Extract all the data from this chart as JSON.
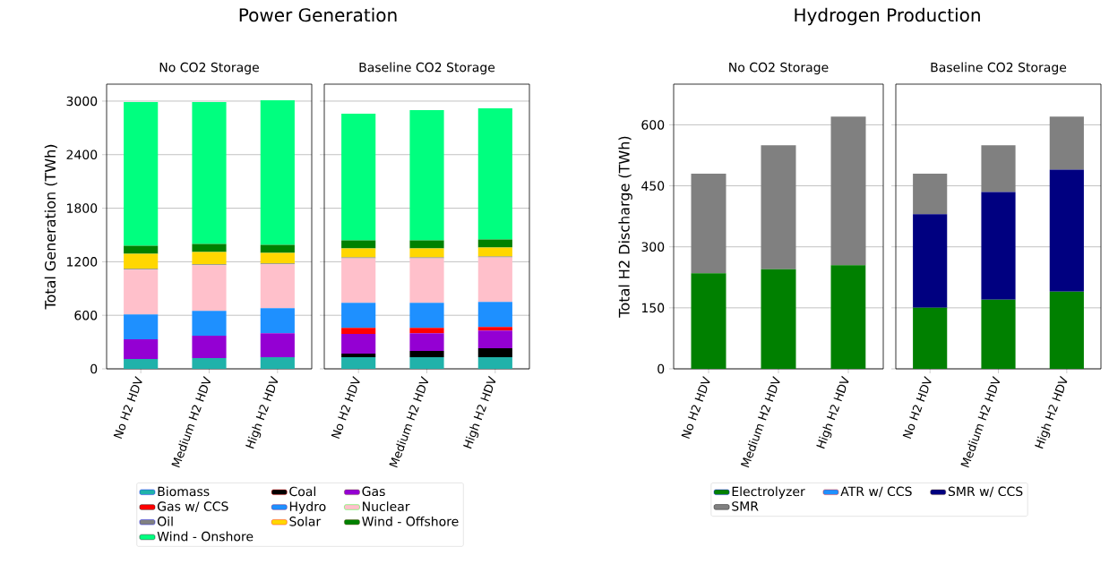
{
  "chart_data": [
    {
      "type": "bar",
      "title": "Power Generation",
      "subtitle": "No CO2 Storage",
      "ylabel": "Total Generation (TWh)",
      "categories": [
        "No H2 HDV",
        "Medium H2 HDV",
        "High H2 HDV"
      ],
      "stacked": true,
      "ylim": [
        0,
        3190
      ],
      "yticks": [
        0,
        600,
        1200,
        1800,
        2400,
        3000
      ],
      "grid": "y",
      "legend": "bottom",
      "series": [
        {
          "name": "Biomass",
          "color": "#20b2aa",
          "values": [
            110,
            120,
            130
          ]
        },
        {
          "name": "Coal",
          "color": "#000000",
          "values": [
            0,
            0,
            0
          ]
        },
        {
          "name": "Gas",
          "color": "#9400d3",
          "values": [
            220,
            250,
            270
          ]
        },
        {
          "name": "Gas w/ CCS",
          "color": "#ff0000",
          "values": [
            0,
            0,
            0
          ]
        },
        {
          "name": "Hydro",
          "color": "#1e90ff",
          "values": [
            280,
            280,
            280
          ]
        },
        {
          "name": "Nuclear",
          "color": "#ffc0cb",
          "values": [
            500,
            510,
            490
          ]
        },
        {
          "name": "Oil",
          "color": "#808080",
          "values": [
            10,
            10,
            10
          ]
        },
        {
          "name": "Solar",
          "color": "#ffd700",
          "values": [
            170,
            140,
            120
          ]
        },
        {
          "name": "Wind - Offshore",
          "color": "#008000",
          "values": [
            90,
            90,
            90
          ]
        },
        {
          "name": "Wind - Onshore",
          "color": "#00ff7f",
          "values": [
            1610,
            1590,
            1620
          ]
        }
      ]
    },
    {
      "type": "bar",
      "subtitle": "Baseline CO2 Storage",
      "categories": [
        "No H2 HDV",
        "Medium H2 HDV",
        "High H2 HDV"
      ],
      "stacked": true,
      "ylim": [
        0,
        3190
      ],
      "yticks": [
        0,
        600,
        1200,
        1800,
        2400,
        3000
      ],
      "grid": "y",
      "tick_labels": "x",
      "series": [
        {
          "color": "#20b2aa",
          "values": [
            130,
            130,
            130
          ]
        },
        {
          "color": "#000000",
          "values": [
            40,
            70,
            100
          ]
        },
        {
          "color": "#9400d3",
          "values": [
            220,
            200,
            200
          ]
        },
        {
          "color": "#ff0000",
          "values": [
            70,
            60,
            40
          ]
        },
        {
          "color": "#1e90ff",
          "values": [
            280,
            280,
            280
          ]
        },
        {
          "color": "#ffc0cb",
          "values": [
            500,
            500,
            500
          ]
        },
        {
          "color": "#808080",
          "values": [
            10,
            10,
            10
          ]
        },
        {
          "color": "#ffd700",
          "values": [
            100,
            100,
            100
          ]
        },
        {
          "color": "#008000",
          "values": [
            90,
            90,
            90
          ]
        },
        {
          "color": "#00ff7f",
          "values": [
            1420,
            1460,
            1470
          ]
        }
      ]
    },
    {
      "type": "bar",
      "title": "Hydrogen Production",
      "subtitle": "No CO2 Storage",
      "ylabel": "Total H2 Discharge (TWh)",
      "categories": [
        "No H2 HDV",
        "Medium H2 HDV",
        "High H2 HDV"
      ],
      "stacked": true,
      "ylim": [
        0,
        700
      ],
      "yticks": [
        0,
        150,
        300,
        450,
        600
      ],
      "grid": "y",
      "legend": "bottom",
      "series": [
        {
          "name": "Electrolyzer",
          "color": "#008000",
          "values": [
            235,
            245,
            255
          ]
        },
        {
          "name": "ATR w/ CCS",
          "color": "#1e90ff",
          "values": [
            0,
            0,
            0
          ]
        },
        {
          "name": "SMR w/ CCS",
          "color": "#000080",
          "values": [
            0,
            0,
            0
          ]
        },
        {
          "name": "SMR",
          "color": "#808080",
          "values": [
            245,
            305,
            365
          ]
        }
      ]
    },
    {
      "type": "bar",
      "subtitle": "Baseline CO2 Storage",
      "categories": [
        "No H2 HDV",
        "Medium H2 HDV",
        "High H2 HDV"
      ],
      "stacked": true,
      "ylim": [
        0,
        700
      ],
      "yticks": [
        0,
        150,
        300,
        450,
        600
      ],
      "grid": "y",
      "tick_labels": "x",
      "series": [
        {
          "color": "#008000",
          "values": [
            150,
            170,
            190
          ]
        },
        {
          "color": "#1e90ff",
          "values": [
            0,
            0,
            0
          ]
        },
        {
          "color": "#000080",
          "values": [
            230,
            265,
            300
          ]
        },
        {
          "color": "#808080",
          "values": [
            100,
            115,
            130
          ]
        }
      ]
    }
  ]
}
